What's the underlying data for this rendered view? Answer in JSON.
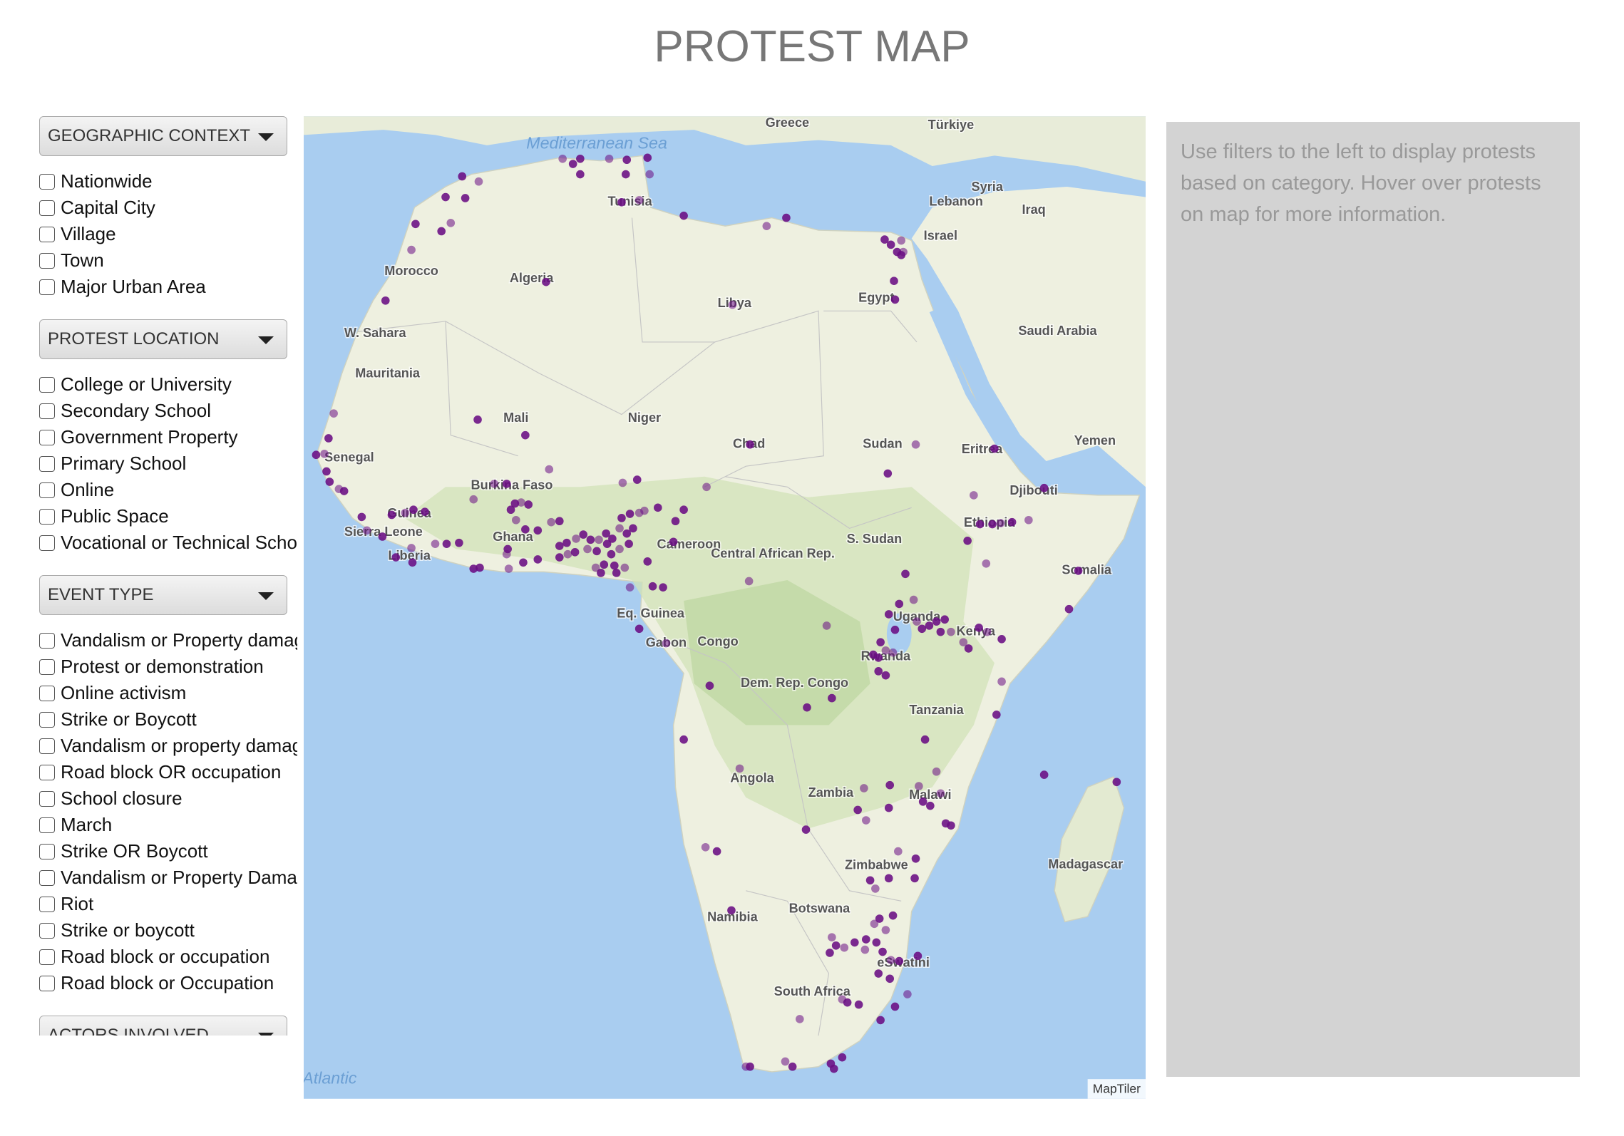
{
  "header": {
    "title": "PROTEST MAP"
  },
  "filters": [
    {
      "label": "GEOGRAPHIC CONTEXT",
      "options": [
        "Nationwide",
        "Capital City",
        "Village",
        "Town",
        "Major Urban Area"
      ]
    },
    {
      "label": "PROTEST LOCATION",
      "options": [
        "College or University",
        "Secondary School",
        "Government Property",
        "Primary School",
        "Online",
        "Public Space",
        "Vocational or Technical School"
      ]
    },
    {
      "label": "EVENT TYPE",
      "options": [
        "Vandalism or Property damage",
        "Protest or demonstration",
        "Online activism",
        "Strike or Boycott",
        "Vandalism or property damage",
        "Road block OR occupation",
        "School closure",
        "March",
        "Strike OR Boycott",
        "Vandalism or Property Damage",
        "Riot",
        "Strike or boycott",
        "Road block or occupation",
        "Road block or Occupation"
      ]
    },
    {
      "label": "ACTORS INVOLVED"
    }
  ],
  "info": {
    "text": "Use filters to the left to display protests based on category. Hover over protests on map for more information."
  },
  "map": {
    "sea_labels": [
      "Mediterranean Sea",
      "Atlantic"
    ],
    "labels": [
      "Greece",
      "Türkiye",
      "Syria",
      "Iraq",
      "Lebanon",
      "Israel",
      "Tunisia",
      "Morocco",
      "Algeria",
      "Libya",
      "Egypt",
      "Saudi Arabia",
      "W. Sahara",
      "Mauritania",
      "Mali",
      "Niger",
      "Chad",
      "Sudan",
      "Eritrea",
      "Yemen",
      "Senegal",
      "Burkina Faso",
      "Djibouti",
      "Guinea",
      "Sierra Leone",
      "Ghana",
      "Cameroon",
      "Central African Rep.",
      "S. Sudan",
      "Ethiopia",
      "Liberia",
      "Somalia",
      "Eq. Guinea",
      "Uganda",
      "Kenya",
      "Gabon",
      "Congo",
      "Rwanda",
      "Dem. Rep. Congo",
      "Tanzania",
      "Angola",
      "Zambia",
      "Malawi",
      "Madagascar",
      "Zimbabwe",
      "Namibia",
      "Botswana",
      "South Africa",
      "eSwatini"
    ],
    "attribution": "MapTiler"
  }
}
